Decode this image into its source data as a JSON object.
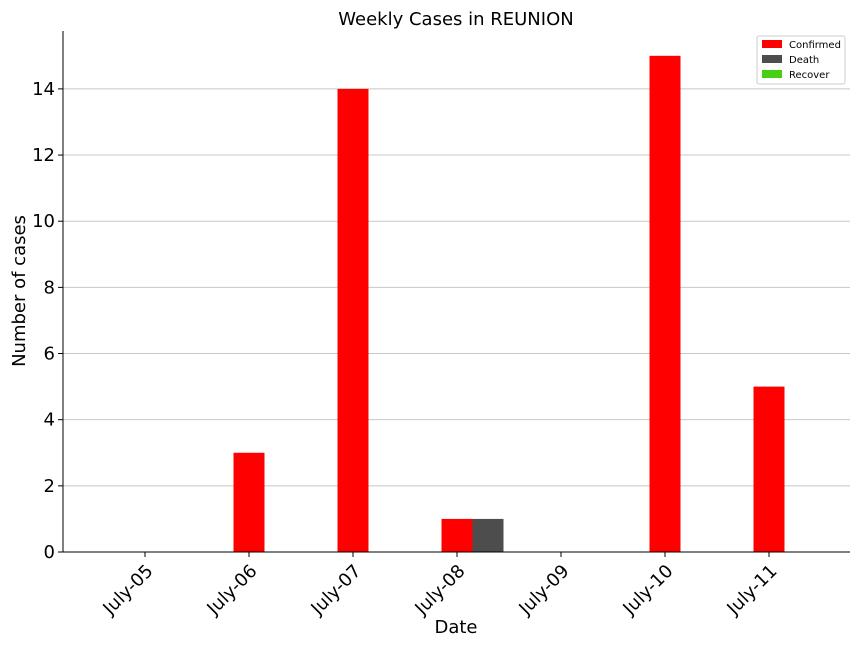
{
  "chart_data": {
    "type": "bar",
    "title": "Weekly Cases in REUNION",
    "xlabel": "Date",
    "ylabel": "Number of cases",
    "categories": [
      "July-05",
      "July-06",
      "July-07",
      "July-08",
      "July-09",
      "July-10",
      "July-11"
    ],
    "series": [
      {
        "name": "Confirmed",
        "color": "#ff0000",
        "values": [
          0,
          3,
          14,
          1,
          0,
          15,
          5
        ]
      },
      {
        "name": "Death",
        "color": "#4d4d4d",
        "values": [
          0,
          0,
          0,
          1,
          0,
          0,
          0
        ]
      },
      {
        "name": "Recover",
        "color": "#44d013",
        "values": [
          0,
          0,
          0,
          0,
          0,
          0,
          0
        ]
      }
    ],
    "ylim": [
      0,
      15.75
    ],
    "yticks": [
      0,
      2,
      4,
      6,
      8,
      10,
      12,
      14
    ],
    "grid": "y",
    "legend_position": "top-right"
  }
}
